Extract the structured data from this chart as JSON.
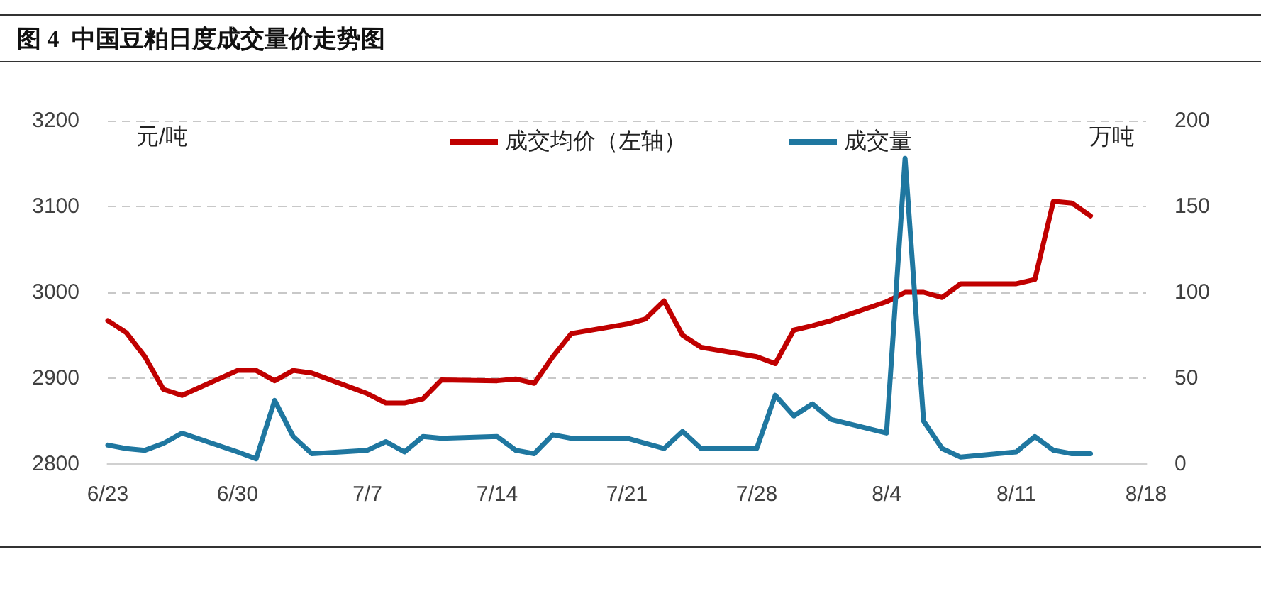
{
  "chart_data": {
    "type": "line",
    "title": "图 4  中国豆粕日度成交量价走势图",
    "ylabel": "元/吨",
    "y2label": "万吨",
    "x": [
      "--06-23",
      "--06-24",
      "--06-25",
      "--06-26",
      "--06-27",
      "--06-30",
      "--07-01",
      "--07-02",
      "--07-03",
      "--07-04",
      "--07-07",
      "--07-08",
      "--07-09",
      "--07-10",
      "--07-11",
      "--07-14",
      "--07-15",
      "--07-16",
      "--07-17",
      "--07-18",
      "--07-21",
      "--07-22",
      "--07-23",
      "--07-24",
      "--07-25",
      "--07-28",
      "--07-29",
      "--07-30",
      "--07-31",
      "--08-01",
      "--08-04",
      "--08-05",
      "--08-06",
      "--08-07",
      "--08-08",
      "--08-11",
      "--08-12",
      "--08-13",
      "--08-14",
      "--08-15"
    ],
    "series": [
      {
        "name": "成交均价（左轴）",
        "color": "#c00000",
        "axis": "y",
        "values": [
          2967,
          2953,
          2925,
          2887,
          2880,
          2909,
          2909,
          2897,
          2909,
          2906,
          2882,
          2871,
          2871,
          2876,
          2898,
          2897,
          2899,
          2894,
          2925,
          2952,
          2963,
          2969,
          2990,
          2950,
          2936,
          2925,
          2917,
          2956,
          2961,
          2967,
          2989,
          3000,
          3000,
          2994,
          3010,
          3010,
          3015,
          3106,
          3104,
          3089
        ]
      },
      {
        "name": "成交量",
        "color": "#1f77a0",
        "axis": "y2",
        "values": [
          11,
          9,
          8,
          12,
          18,
          7,
          3,
          37,
          16,
          6,
          8,
          13,
          7,
          16,
          15,
          16,
          8,
          6,
          17,
          15,
          15,
          12,
          9,
          19,
          9,
          9,
          40,
          28,
          35,
          26,
          18,
          178,
          25,
          9,
          4,
          7,
          16,
          8,
          6,
          6
        ]
      }
    ],
    "xlim": [
      "--06-23",
      "--08-18"
    ],
    "xticks": [
      {
        "value": "--06-23",
        "label": "6/23"
      },
      {
        "value": "--06-30",
        "label": "6/30"
      },
      {
        "value": "--07-07",
        "label": "7/7"
      },
      {
        "value": "--07-14",
        "label": "7/14"
      },
      {
        "value": "--07-21",
        "label": "7/21"
      },
      {
        "value": "--07-28",
        "label": "7/28"
      },
      {
        "value": "--08-04",
        "label": "8/4"
      },
      {
        "value": "--08-11",
        "label": "8/11"
      },
      {
        "value": "--08-18",
        "label": "8/18"
      }
    ],
    "ylim": [
      2800,
      3200
    ],
    "yticks": [
      2800,
      2900,
      3000,
      3100,
      3200
    ],
    "y2lim": [
      0,
      200
    ],
    "y2ticks": [
      0,
      50,
      100,
      150,
      200
    ],
    "grid": "y",
    "legend": "top",
    "marker": "none",
    "line_style": "solid"
  }
}
